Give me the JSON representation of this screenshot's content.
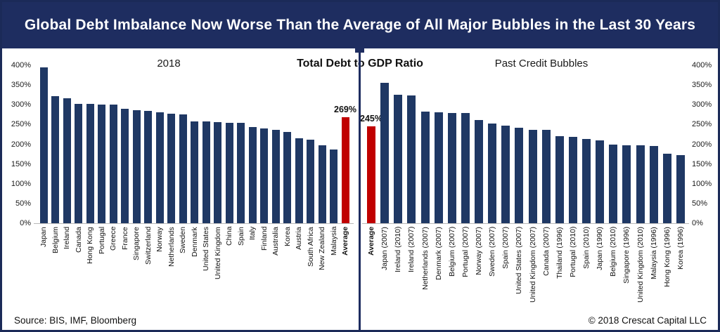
{
  "title": "Global Debt Imbalance Now Worse Than the Average of All Major Bubbles in the Last 30 Years",
  "center_heading": "Total Debt to GDP Ratio",
  "footer": {
    "source": "Source: BIS, IMF, Bloomberg",
    "copyright": "© 2018 Crescat Capital LLC"
  },
  "colors": {
    "navy_bar": "#1f3864",
    "red_bar": "#c00000",
    "title_band": "#1e2d60",
    "axis_line": "#b8b8b8"
  },
  "chart_data": [
    {
      "type": "bar",
      "title": "2018",
      "xlabel": "",
      "ylabel": "Total Debt to GDP Ratio (%)",
      "ylim": [
        0,
        400
      ],
      "ytick_labels": [
        "400%",
        "350%",
        "300%",
        "250%",
        "200%",
        "150%",
        "100%",
        "50%",
        "0%"
      ],
      "axis_side": "left",
      "grid": false,
      "legend": false,
      "bar_color": "#1f3864",
      "highlight_color": "#c00000",
      "highlight_category": "Average",
      "annotation": {
        "category": "Average",
        "text": "269%"
      },
      "categories": [
        "Japan",
        "Belgium",
        "Ireland",
        "Canada",
        "Hong Kong",
        "Portugal",
        "Greece",
        "France",
        "Singapore",
        "Switzerland",
        "Norway",
        "Netherlands",
        "Sweden",
        "Denmark",
        "United States",
        "United Kingdom",
        "China",
        "Spain",
        "Italy",
        "Finland",
        "Australia",
        "Korea",
        "Austria",
        "South Africa",
        "New Zealand",
        "Malaysia",
        "Average"
      ],
      "values": [
        395,
        322,
        316,
        303,
        303,
        300,
        300,
        290,
        287,
        284,
        281,
        277,
        275,
        258,
        257,
        256,
        255,
        254,
        244,
        240,
        236,
        231,
        216,
        212,
        197,
        186,
        269
      ]
    },
    {
      "type": "bar",
      "title": "Past Credit Bubbles",
      "xlabel": "",
      "ylabel": "Total Debt to GDP Ratio (%)",
      "ylim": [
        0,
        400
      ],
      "ytick_labels": [
        "400%",
        "350%",
        "300%",
        "250%",
        "200%",
        "150%",
        "100%",
        "50%",
        "0%"
      ],
      "axis_side": "right",
      "grid": false,
      "legend": false,
      "bar_color": "#1f3864",
      "highlight_color": "#c00000",
      "highlight_category": "Average",
      "annotation": {
        "category": "Average",
        "text": "245%"
      },
      "categories": [
        "Average",
        "Japan (2007)",
        "Ireland (2010)",
        "Ireland (2007)",
        "Netherlands (2007)",
        "Denmark (2007)",
        "Belgium (2007)",
        "Portugal (2007)",
        "Norway (2007)",
        "Sweden (2007)",
        "Spain (2007)",
        "United States (2007)",
        "United Kingdom (2007)",
        "Canada (2007)",
        "Thailand (1996)",
        "Portugal (2010)",
        "Spain (2010)",
        "Japan (1990)",
        "Belgium (2010)",
        "Singapore (1996)",
        "United Kingdom (2010)",
        "Malaysia (1996)",
        "Hong Kong (1996)",
        "Korea (1996)"
      ],
      "values": [
        245,
        355,
        325,
        323,
        282,
        281,
        280,
        279,
        262,
        253,
        247,
        242,
        237,
        236,
        221,
        219,
        213,
        209,
        199,
        198,
        197,
        196,
        176,
        172
      ]
    }
  ]
}
